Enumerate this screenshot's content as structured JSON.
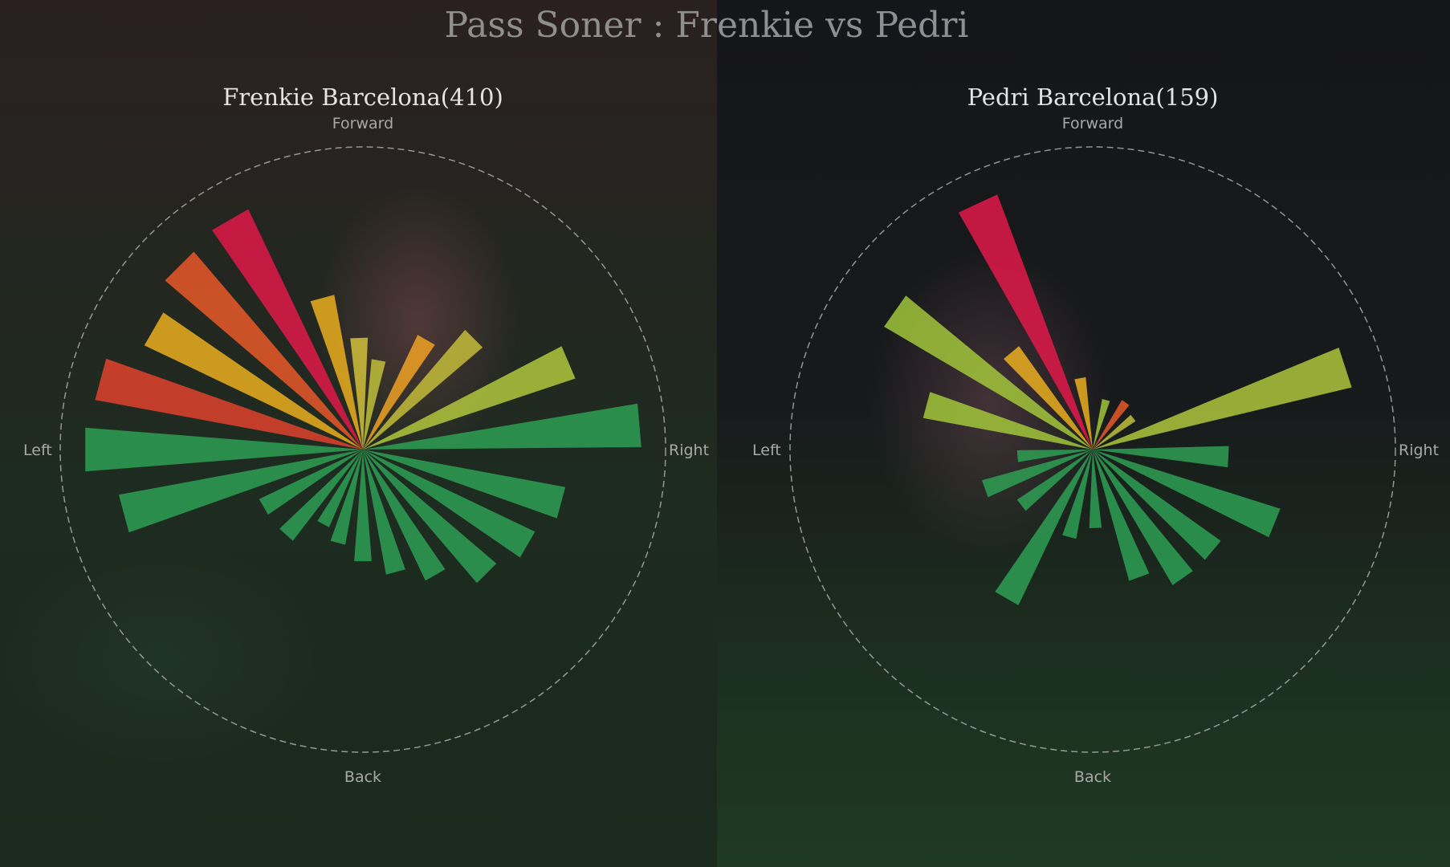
{
  "title": "Pass Soner : Frenkie vs Pedri",
  "colors": {
    "ring": "#bdbdbd",
    "title_text": "#8f8f8f",
    "subtitle_text": "#e4e4e4",
    "label_text": "#a8a8a8"
  },
  "chart_data": [
    {
      "type": "polar-bar",
      "subtitle": "Frenkie Barcelona(410)",
      "direction_labels": {
        "forward": "Forward",
        "back": "Back",
        "left": "Left",
        "right": "Right"
      },
      "sectors": [
        {
          "angle": 330,
          "value": 0.88,
          "color": "#e8184a"
        },
        {
          "angle": 315,
          "value": 0.86,
          "color": "#f05a2a"
        },
        {
          "angle": 300,
          "value": 0.8,
          "color": "#f2b31e"
        },
        {
          "angle": 285,
          "value": 0.9,
          "color": "#e8432d"
        },
        {
          "angle": 345,
          "value": 0.52,
          "color": "#f2b31e"
        },
        {
          "angle": 358,
          "value": 0.37,
          "color": "#d8c63a"
        },
        {
          "angle": 10,
          "value": 0.3,
          "color": "#c6c43c"
        },
        {
          "angle": 30,
          "value": 0.42,
          "color": "#f5a623"
        },
        {
          "angle": 45,
          "value": 0.52,
          "color": "#c8c23a"
        },
        {
          "angle": 67,
          "value": 0.74,
          "color": "#b6cc3e"
        },
        {
          "angle": 85,
          "value": 0.92,
          "color": "#2ea356"
        },
        {
          "angle": 105,
          "value": 0.68,
          "color": "#2ea356"
        },
        {
          "angle": 120,
          "value": 0.63,
          "color": "#2ea356"
        },
        {
          "angle": 135,
          "value": 0.58,
          "color": "#2ea356"
        },
        {
          "angle": 150,
          "value": 0.48,
          "color": "#2ea356"
        },
        {
          "angle": 165,
          "value": 0.42,
          "color": "#2ea356"
        },
        {
          "angle": 180,
          "value": 0.37,
          "color": "#2ea356"
        },
        {
          "angle": 195,
          "value": 0.32,
          "color": "#2ea356"
        },
        {
          "angle": 208,
          "value": 0.28,
          "color": "#2ea356"
        },
        {
          "angle": 222,
          "value": 0.38,
          "color": "#2ea356"
        },
        {
          "angle": 240,
          "value": 0.38,
          "color": "#2ea356"
        },
        {
          "angle": 255,
          "value": 0.82,
          "color": "#2ea356"
        },
        {
          "angle": 270,
          "value": 0.92,
          "color": "#2ea356"
        }
      ]
    },
    {
      "type": "polar-bar",
      "subtitle": "Pedri Barcelona(159)",
      "direction_labels": {
        "forward": "Forward",
        "back": "Back",
        "left": "Left",
        "right": "Right"
      },
      "sectors": [
        {
          "angle": 335,
          "value": 0.9,
          "color": "#e8184a"
        },
        {
          "angle": 305,
          "value": 0.8,
          "color": "#a6cc3c"
        },
        {
          "angle": 320,
          "value": 0.42,
          "color": "#f2b31e"
        },
        {
          "angle": 285,
          "value": 0.57,
          "color": "#a6cc3c"
        },
        {
          "angle": 350,
          "value": 0.24,
          "color": "#f2b31e"
        },
        {
          "angle": 15,
          "value": 0.17,
          "color": "#a6cc3c"
        },
        {
          "angle": 35,
          "value": 0.19,
          "color": "#f05a2a"
        },
        {
          "angle": 52,
          "value": 0.17,
          "color": "#c6c43c"
        },
        {
          "angle": 72,
          "value": 0.88,
          "color": "#b6cc3e"
        },
        {
          "angle": 93,
          "value": 0.45,
          "color": "#2ea356"
        },
        {
          "angle": 112,
          "value": 0.65,
          "color": "#2ea356"
        },
        {
          "angle": 130,
          "value": 0.52,
          "color": "#2ea356"
        },
        {
          "angle": 145,
          "value": 0.52,
          "color": "#2ea356"
        },
        {
          "angle": 160,
          "value": 0.45,
          "color": "#2ea356"
        },
        {
          "angle": 178,
          "value": 0.26,
          "color": "#2ea356"
        },
        {
          "angle": 195,
          "value": 0.3,
          "color": "#2ea356"
        },
        {
          "angle": 210,
          "value": 0.57,
          "color": "#2ea356"
        },
        {
          "angle": 232,
          "value": 0.3,
          "color": "#2ea356"
        },
        {
          "angle": 250,
          "value": 0.38,
          "color": "#2ea356"
        },
        {
          "angle": 265,
          "value": 0.25,
          "color": "#2ea356"
        }
      ]
    }
  ]
}
